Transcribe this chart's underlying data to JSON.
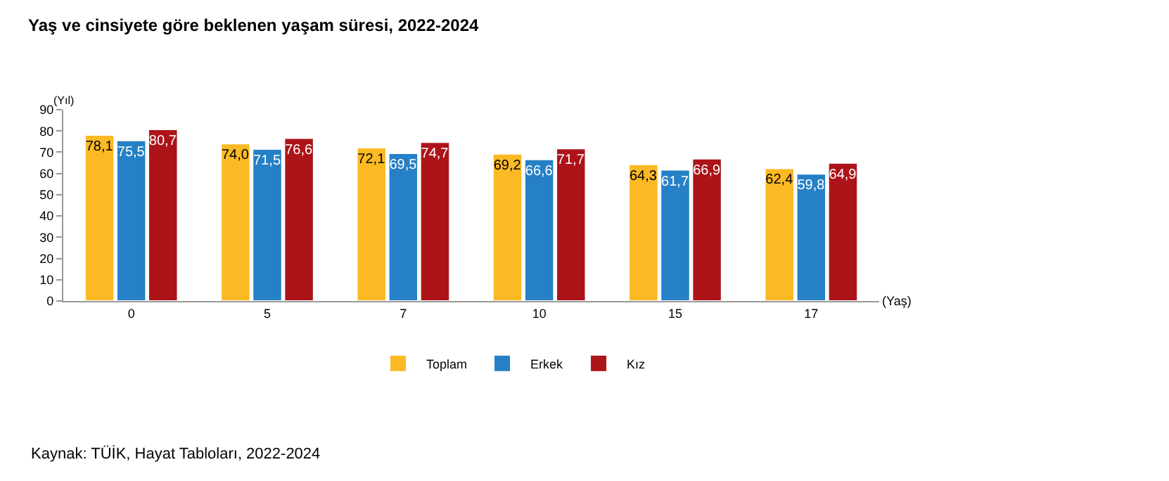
{
  "chart_data": {
    "type": "bar",
    "title": "Yaş ve cinsiyete göre beklenen yaşam süresi, 2022-2024",
    "xlabel": "(Yaş)",
    "ylabel": "(Yıl)",
    "categories": [
      "0",
      "5",
      "7",
      "10",
      "15",
      "17"
    ],
    "series": [
      {
        "name": "Toplam",
        "color": "#fbb923",
        "values": [
          78.1,
          74.0,
          72.1,
          69.2,
          64.3,
          62.4
        ],
        "value_labels": [
          "78,1",
          "74,0",
          "72,1",
          "69,2",
          "64,3",
          "62,4"
        ]
      },
      {
        "name": "Erkek",
        "color": "#2680c6",
        "values": [
          75.5,
          71.5,
          69.5,
          66.6,
          61.7,
          59.8
        ],
        "value_labels": [
          "75,5",
          "71,5",
          "69,5",
          "66,6",
          "61,7",
          "59,8"
        ]
      },
      {
        "name": "Kız",
        "color": "#ac1419",
        "values": [
          80.7,
          76.6,
          74.7,
          71.7,
          66.9,
          64.9
        ],
        "value_labels": [
          "80,7",
          "76,6",
          "74,7",
          "71,7",
          "66,9",
          "64,9"
        ]
      }
    ],
    "ylim": [
      0,
      90
    ],
    "yticks": [
      0,
      10,
      20,
      30,
      40,
      50,
      60,
      70,
      80,
      90
    ],
    "legend": "bottom",
    "annotations": [
      "Kaynak: TÜİK, Hayat Tabloları, 2022-2024"
    ]
  }
}
